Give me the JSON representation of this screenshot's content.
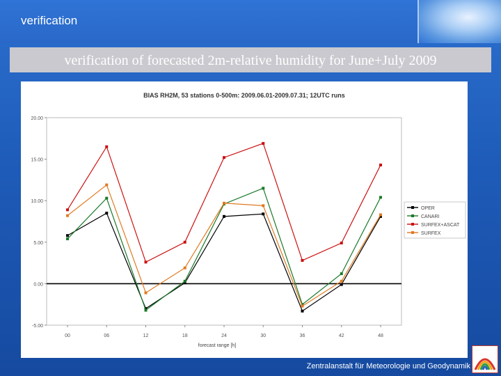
{
  "header": {
    "section_label": "verification"
  },
  "slide": {
    "heading": "verification of forecasted 2m-relative humidity for June+July 2009"
  },
  "footer": {
    "institute": "Zentralanstalt für Meteorologie und Geodynamik"
  },
  "colors": {
    "OPER": "#000000",
    "CANARI": "#1a7a2a",
    "SURFEX+ASCAT": "#cc1111",
    "SURFEX": "#e07a20"
  },
  "chart_data": {
    "type": "line",
    "title": "BIAS RH2M, 53 stations 0-500m: 2009.06.01-2009.07.31; 12UTC runs",
    "xlabel": "forecast range [h]",
    "ylabel": "",
    "categories": [
      "00",
      "06",
      "12",
      "18",
      "24",
      "30",
      "36",
      "42",
      "48"
    ],
    "yticks": [
      "-5.00",
      "0.00",
      "5.00",
      "10.00",
      "15.00",
      "20.00"
    ],
    "ylim": [
      -5,
      20
    ],
    "grid": false,
    "zero_line": true,
    "legend": "right",
    "series": [
      {
        "name": "OPER",
        "values": [
          5.8,
          8.5,
          -3.0,
          0.1,
          8.1,
          8.4,
          -3.3,
          -0.1,
          8.1
        ]
      },
      {
        "name": "CANARI",
        "values": [
          5.4,
          10.3,
          -3.2,
          0.3,
          9.6,
          11.5,
          -2.5,
          1.2,
          10.4
        ]
      },
      {
        "name": "SURFEX+ASCAT",
        "values": [
          8.9,
          16.5,
          2.6,
          5.0,
          15.2,
          16.9,
          2.8,
          4.9,
          14.3
        ]
      },
      {
        "name": "SURFEX",
        "values": [
          8.2,
          11.9,
          -1.1,
          1.9,
          9.7,
          9.4,
          -2.7,
          0.3,
          8.3
        ]
      }
    ]
  }
}
